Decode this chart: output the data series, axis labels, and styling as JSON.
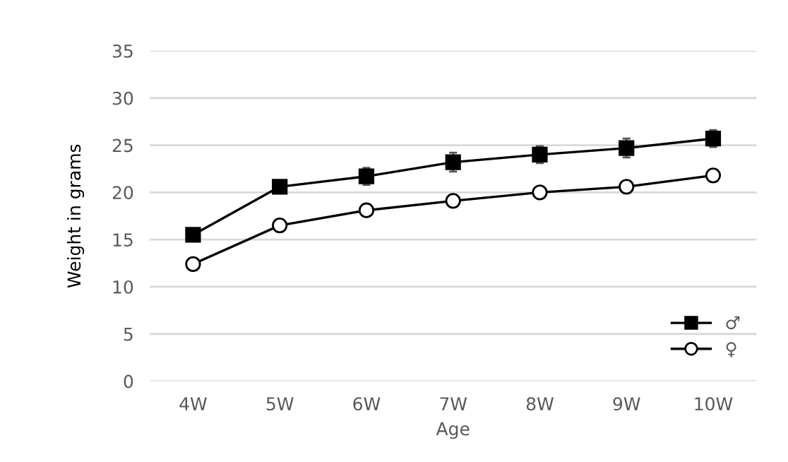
{
  "chart_data": {
    "type": "line",
    "xlabel": "Age",
    "ylabel": "Weight in grams",
    "categories": [
      "4W",
      "5W",
      "6W",
      "7W",
      "8W",
      "9W",
      "10W"
    ],
    "series": [
      {
        "name": "♂",
        "color": "#000000",
        "marker": "square",
        "values": [
          15.5,
          20.6,
          21.7,
          23.2,
          24.0,
          24.7,
          25.7
        ],
        "errors": [
          null,
          null,
          0.9,
          1.0,
          0.9,
          1.0,
          0.9
        ]
      },
      {
        "name": "♀",
        "color": "#000000",
        "marker": "circle",
        "values": [
          12.4,
          16.5,
          18.1,
          19.1,
          20.0,
          20.6,
          21.8
        ]
      }
    ],
    "ylim": [
      0,
      35
    ],
    "yticks": [
      0,
      5,
      10,
      15,
      20,
      25,
      30,
      35
    ],
    "grid": "y",
    "legend": "bottom right"
  }
}
